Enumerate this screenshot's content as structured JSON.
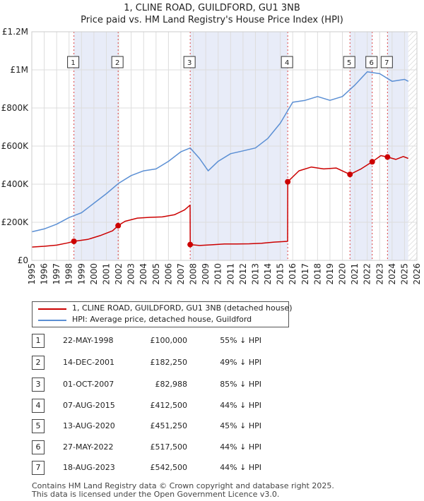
{
  "header": {
    "title": "1, CLINE ROAD, GUILDFORD, GU1 3NB",
    "subtitle": "Price paid vs. HM Land Registry's House Price Index (HPI)"
  },
  "chart_data": {
    "type": "line",
    "title": "1, CLINE ROAD, GUILDFORD, GU1 3NB",
    "subtitle": "Price paid vs. HM Land Registry's House Price Index (HPI)",
    "xlim": [
      1995,
      2026
    ],
    "ylim": [
      0,
      1200000
    ],
    "x_ticks": [
      1995,
      1996,
      1997,
      1998,
      1999,
      2000,
      2001,
      2002,
      2003,
      2004,
      2005,
      2006,
      2007,
      2008,
      2009,
      2010,
      2011,
      2012,
      2013,
      2014,
      2015,
      2016,
      2017,
      2018,
      2019,
      2020,
      2021,
      2022,
      2023,
      2024,
      2025,
      2026
    ],
    "y_ticks": [
      0,
      200000,
      400000,
      600000,
      800000,
      1000000,
      1200000
    ],
    "y_tick_labels": [
      "£0",
      "£200K",
      "£400K",
      "£600K",
      "£800K",
      "£1M",
      "£1.2M"
    ],
    "grid": true,
    "series": [
      {
        "name": "1, CLINE ROAD, GUILDFORD, GU1 3NB (detached house)",
        "color": "#cc0000",
        "x": [
          1995,
          1996,
          1997,
          1997.9,
          1998.39,
          1999.5,
          2000.5,
          2001.5,
          2001.95,
          2002.5,
          2003.5,
          2004.5,
          2005.5,
          2006.5,
          2007.3,
          2007.74,
          2007.75,
          2008.5,
          2009.5,
          2010.5,
          2011.5,
          2012.5,
          2013.5,
          2014.5,
          2015.59,
          2015.6,
          2016.5,
          2017.5,
          2018.5,
          2019.5,
          2020.61,
          2021.5,
          2022.4,
          2023.1,
          2023.63,
          2024.3,
          2024.9,
          2025.3
        ],
        "values": [
          70000,
          74000,
          80000,
          92000,
          100000,
          110000,
          130000,
          155000,
          182250,
          205000,
          222000,
          226000,
          228000,
          240000,
          265000,
          290000,
          82988,
          78000,
          82000,
          86000,
          86000,
          87000,
          90000,
          96000,
          100000,
          412500,
          470000,
          490000,
          480000,
          485000,
          451250,
          480000,
          517500,
          550000,
          542500,
          530000,
          545000,
          535000
        ]
      },
      {
        "name": "HPI: Average price, detached house, Guildford",
        "color": "#5b8fd4",
        "x": [
          1995,
          1996,
          1997,
          1998,
          1999,
          2000,
          2001,
          2002,
          2003,
          2004,
          2005,
          2006,
          2007,
          2007.75,
          2008.5,
          2009.2,
          2010,
          2011,
          2012,
          2013,
          2014,
          2015,
          2016,
          2017,
          2018,
          2019,
          2020,
          2021,
          2022,
          2023,
          2024,
          2025,
          2025.3
        ],
        "values": [
          150000,
          165000,
          190000,
          225000,
          250000,
          300000,
          350000,
          405000,
          445000,
          470000,
          480000,
          520000,
          570000,
          590000,
          535000,
          470000,
          520000,
          560000,
          575000,
          590000,
          640000,
          720000,
          830000,
          840000,
          860000,
          840000,
          860000,
          920000,
          990000,
          980000,
          940000,
          950000,
          940000
        ]
      }
    ],
    "annotations": [
      {
        "label": "1",
        "x": 1998.39,
        "value": 100000
      },
      {
        "label": "2",
        "x": 2001.95,
        "value": 182250
      },
      {
        "label": "3",
        "x": 2007.75,
        "value": 82988
      },
      {
        "label": "4",
        "x": 2015.6,
        "value": 412500
      },
      {
        "label": "5",
        "x": 2020.61,
        "value": 451250
      },
      {
        "label": "6",
        "x": 2022.4,
        "value": 517500
      },
      {
        "label": "7",
        "x": 2023.63,
        "value": 542500
      }
    ],
    "shaded_ranges": [
      [
        1998.39,
        2001.95
      ],
      [
        2007.75,
        2015.6
      ],
      [
        2020.61,
        2022.4
      ],
      [
        2023.63,
        2025.3
      ]
    ],
    "legend": "bottom"
  },
  "legend": {
    "items": [
      {
        "label": "1, CLINE ROAD, GUILDFORD, GU1 3NB (detached house)",
        "color": "#cc0000"
      },
      {
        "label": "HPI: Average price, detached house, Guildford",
        "color": "#5b8fd4"
      }
    ]
  },
  "transactions": [
    {
      "num": "1",
      "date": "22-MAY-1998",
      "price": "£100,000",
      "hpi": "55% ↓ HPI"
    },
    {
      "num": "2",
      "date": "14-DEC-2001",
      "price": "£182,250",
      "hpi": "49% ↓ HPI"
    },
    {
      "num": "3",
      "date": "01-OCT-2007",
      "price": "£82,988",
      "hpi": "85% ↓ HPI"
    },
    {
      "num": "4",
      "date": "07-AUG-2015",
      "price": "£412,500",
      "hpi": "44% ↓ HPI"
    },
    {
      "num": "5",
      "date": "13-AUG-2020",
      "price": "£451,250",
      "hpi": "45% ↓ HPI"
    },
    {
      "num": "6",
      "date": "27-MAY-2022",
      "price": "£517,500",
      "hpi": "44% ↓ HPI"
    },
    {
      "num": "7",
      "date": "18-AUG-2023",
      "price": "£542,500",
      "hpi": "44% ↓ HPI"
    }
  ],
  "footer": {
    "line1": "Contains HM Land Registry data © Crown copyright and database right 2025.",
    "line2": "This data is licensed under the Open Government Licence v3.0."
  }
}
